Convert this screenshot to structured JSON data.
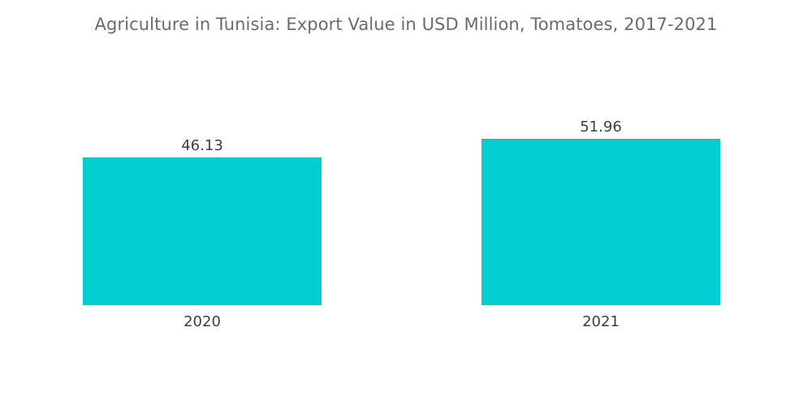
{
  "chart_data": {
    "type": "bar",
    "title": "Agriculture in Tunisia: Export Value in USD Million, Tomatoes, 2017-2021",
    "categories": [
      "2020",
      "2021"
    ],
    "values": [
      46.13,
      51.96
    ],
    "data_labels": [
      "46.13",
      "51.96"
    ],
    "xlabel": "",
    "ylabel": "",
    "ylim": [
      0,
      51.96
    ],
    "grid": false,
    "legend": "none",
    "colors": {
      "bar": "#00CED1",
      "text": "#3f3f3f",
      "title": "#6b6b6b"
    }
  }
}
